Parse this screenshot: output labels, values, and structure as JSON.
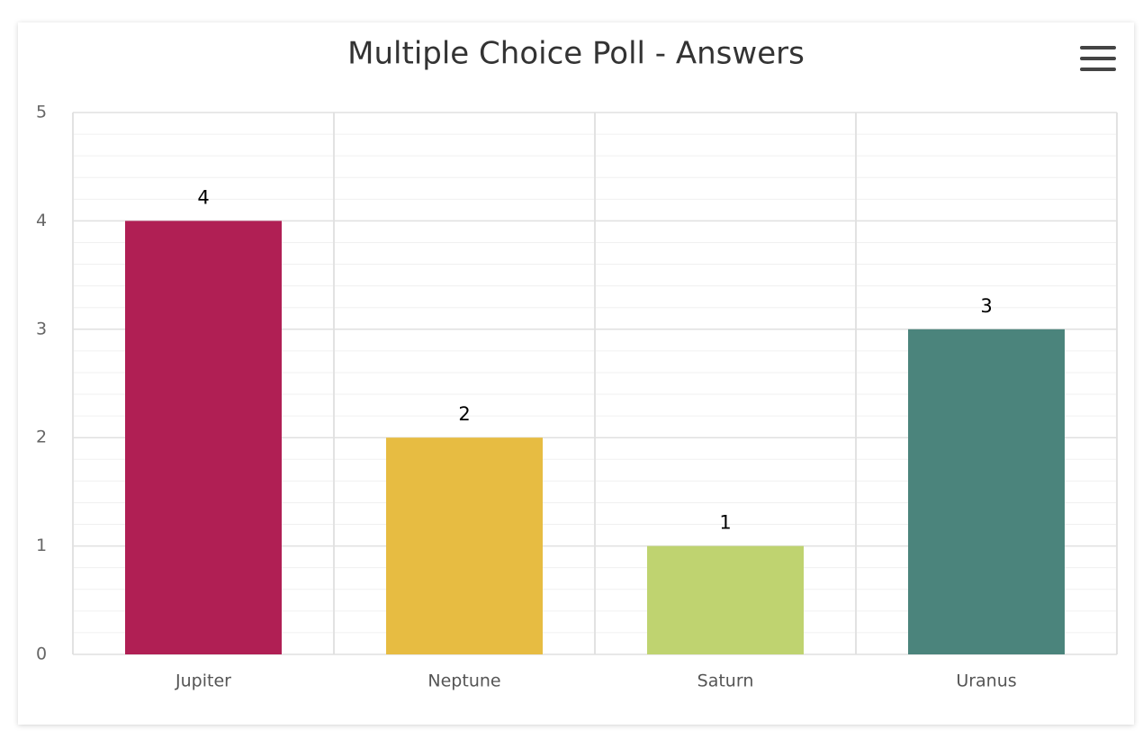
{
  "chart_data": {
    "type": "bar",
    "title": "Multiple Choice Poll - Answers",
    "categories": [
      "Jupiter",
      "Neptune",
      "Saturn",
      "Uranus"
    ],
    "values": [
      4,
      2,
      1,
      3
    ],
    "colors": [
      "#b01f54",
      "#e7bc42",
      "#bfd370",
      "#4b847c"
    ],
    "ylim": [
      0,
      5
    ],
    "yticks": [
      0,
      1,
      2,
      3,
      4,
      5
    ],
    "grid": true
  }
}
